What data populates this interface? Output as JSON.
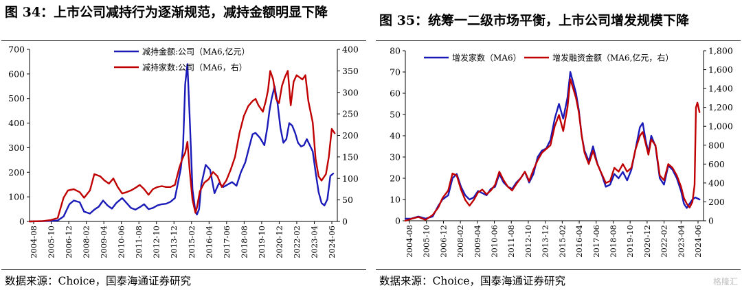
{
  "chart_data": [
    {
      "id": "fig34",
      "type": "line",
      "title": "图 34：上市公司减持行为逐渐规范，减持金额明显下降",
      "source": "数据来源：Choice，国泰海通证券研究",
      "x_ticks": [
        "2004-08",
        "2005-10",
        "2006-12",
        "2008-02",
        "2009-04",
        "2010-06",
        "2011-08",
        "2012-10",
        "2013-12",
        "2015-02",
        "2016-04",
        "2017-06",
        "2018-08",
        "2019-10",
        "2020-12",
        "2022-02",
        "2023-04",
        "2024-06"
      ],
      "y_left": {
        "min": 0,
        "max": 700,
        "ticks": [
          0,
          100,
          200,
          300,
          400,
          500,
          600,
          700
        ]
      },
      "y_right": {
        "min": 0,
        "max": 400,
        "ticks": [
          0,
          50,
          100,
          150,
          200,
          250,
          300,
          350,
          400
        ]
      },
      "legend_position": "top",
      "series": [
        {
          "name": "减持金额:公司（MA6,亿元）",
          "axis": "left",
          "color": "#1a1ab8",
          "x": [
            2004.58,
            2005.5,
            2006.0,
            2006.5,
            2006.9,
            2007.3,
            2007.6,
            2008.0,
            2008.3,
            2008.7,
            2009.0,
            2009.3,
            2009.6,
            2009.9,
            2010.2,
            2010.5,
            2010.9,
            2011.2,
            2011.5,
            2011.8,
            2012.1,
            2012.4,
            2012.7,
            2013.0,
            2013.3,
            2013.6,
            2013.9,
            2014.2,
            2014.5,
            2014.9,
            2015.05,
            2015.2,
            2015.35,
            2015.5,
            2015.7,
            2015.9,
            2016.0,
            2016.15,
            2016.3,
            2016.6,
            2016.9,
            2017.2,
            2017.5,
            2017.8,
            2018.1,
            2018.4,
            2018.7,
            2019.0,
            2019.3,
            2019.6,
            2019.8,
            2020.0,
            2020.3,
            2020.6,
            2020.8,
            2020.95,
            2021.1,
            2021.3,
            2021.5,
            2021.7,
            2021.9,
            2022.1,
            2022.3,
            2022.5,
            2022.7,
            2022.9,
            2023.1,
            2023.3,
            2023.5,
            2023.7,
            2023.9,
            2024.1,
            2024.3,
            2024.5,
            2024.7,
            2024.9,
            2025.1,
            2025.3
          ],
          "y": [
            0,
            1,
            2,
            4,
            20,
            70,
            85,
            78,
            40,
            32,
            48,
            60,
            85,
            65,
            52,
            75,
            95,
            75,
            55,
            48,
            58,
            70,
            50,
            55,
            65,
            70,
            72,
            80,
            95,
            215,
            300,
            560,
            640,
            430,
            130,
            40,
            28,
            50,
            150,
            230,
            210,
            115,
            155,
            140,
            150,
            160,
            145,
            200,
            240,
            310,
            355,
            360,
            340,
            310,
            380,
            450,
            500,
            550,
            480,
            380,
            320,
            335,
            400,
            390,
            360,
            320,
            305,
            310,
            335,
            310,
            285,
            200,
            120,
            75,
            65,
            90,
            185,
            195
          ]
        },
        {
          "name": "减持家数:公司（MA6，右）",
          "axis": "right",
          "color": "#c00000",
          "x": [
            2004.58,
            2005.5,
            2006.0,
            2006.5,
            2006.9,
            2007.2,
            2007.6,
            2008.0,
            2008.3,
            2008.7,
            2009.0,
            2009.4,
            2009.7,
            2010.0,
            2010.3,
            2010.6,
            2010.9,
            2011.2,
            2011.5,
            2011.8,
            2012.1,
            2012.4,
            2012.7,
            2013.0,
            2013.3,
            2013.6,
            2013.9,
            2014.2,
            2014.5,
            2014.8,
            2015.0,
            2015.2,
            2015.35,
            2015.5,
            2015.7,
            2015.9,
            2016.0,
            2016.2,
            2016.5,
            2016.8,
            2017.1,
            2017.4,
            2017.7,
            2018.0,
            2018.3,
            2018.6,
            2018.9,
            2019.2,
            2019.5,
            2019.8,
            2020.0,
            2020.2,
            2020.5,
            2020.7,
            2020.85,
            2021.0,
            2021.2,
            2021.4,
            2021.6,
            2021.8,
            2022.0,
            2022.2,
            2022.4,
            2022.6,
            2022.8,
            2023.0,
            2023.2,
            2023.4,
            2023.6,
            2023.9,
            2024.1,
            2024.3,
            2024.5,
            2024.8,
            2025.0,
            2025.2,
            2025.4
          ],
          "y": [
            0,
            1,
            3,
            8,
            55,
            72,
            75,
            68,
            55,
            72,
            110,
            105,
            95,
            88,
            100,
            80,
            65,
            68,
            72,
            78,
            85,
            75,
            62,
            75,
            80,
            82,
            80,
            80,
            85,
            125,
            145,
            160,
            185,
            120,
            50,
            20,
            32,
            70,
            90,
            98,
            115,
            105,
            80,
            95,
            120,
            150,
            205,
            245,
            268,
            280,
            285,
            270,
            255,
            280,
            305,
            350,
            330,
            285,
            275,
            315,
            335,
            350,
            270,
            325,
            340,
            335,
            330,
            340,
            280,
            230,
            145,
            105,
            95,
            110,
            150,
            215,
            205
          ]
        }
      ]
    },
    {
      "id": "fig35",
      "type": "line",
      "title": "图 35：统筹一二级市场平衡，上市公司增发规模下降",
      "source": "数据来源：Choice，国泰海通证券研究",
      "x_ticks": [
        "2004-08",
        "2005-10",
        "2006-12",
        "2008-02",
        "2009-04",
        "2010-06",
        "2011-08",
        "2012-10",
        "2013-12",
        "2015-02",
        "2016-04",
        "2017-06",
        "2018-08",
        "2019-10",
        "2020-12",
        "2022-02",
        "2023-04",
        "2024-06"
      ],
      "y_left": {
        "min": 0,
        "max": 80,
        "ticks": [
          0,
          10,
          20,
          30,
          40,
          50,
          60,
          70,
          80
        ]
      },
      "y_right": {
        "min": 0,
        "max": 1800,
        "ticks": [
          "0",
          "200",
          "400",
          "600",
          "800",
          "1,000",
          "1,200",
          "1,400",
          "1,600",
          "1,800"
        ]
      },
      "legend_position": "top",
      "series": [
        {
          "name": "增发家数（MA6）",
          "axis": "left",
          "color": "#1a1ab8",
          "x": [
            2004.58,
            2005.0,
            2005.5,
            2006.0,
            2006.5,
            2006.9,
            2007.2,
            2007.6,
            2007.9,
            2008.2,
            2008.5,
            2008.8,
            2009.1,
            2009.4,
            2009.7,
            2010.0,
            2010.3,
            2010.6,
            2010.9,
            2011.2,
            2011.5,
            2011.8,
            2012.1,
            2012.4,
            2012.7,
            2013.0,
            2013.3,
            2013.6,
            2013.9,
            2014.2,
            2014.5,
            2014.8,
            2015.1,
            2015.4,
            2015.7,
            2016.0,
            2016.2,
            2016.4,
            2016.6,
            2016.8,
            2017.0,
            2017.2,
            2017.5,
            2017.8,
            2018.1,
            2018.4,
            2018.7,
            2019.0,
            2019.3,
            2019.6,
            2019.9,
            2020.2,
            2020.5,
            2020.8,
            2021.1,
            2021.3,
            2021.5,
            2021.7,
            2021.9,
            2022.2,
            2022.5,
            2022.8,
            2023.1,
            2023.4,
            2023.7,
            2024.0,
            2024.2,
            2024.4,
            2024.6,
            2024.8,
            2025.0,
            2025.3
          ],
          "y": [
            1,
            1,
            2,
            1,
            2,
            7,
            10,
            12,
            20,
            22,
            16,
            12,
            10,
            11,
            14,
            13,
            12,
            15,
            16,
            22,
            18,
            16,
            15,
            18,
            20,
            23,
            18,
            22,
            30,
            33,
            34,
            38,
            48,
            55,
            48,
            58,
            70,
            65,
            60,
            52,
            40,
            33,
            28,
            35,
            27,
            22,
            16,
            17,
            22,
            20,
            23,
            19,
            24,
            34,
            44,
            46,
            38,
            32,
            40,
            35,
            20,
            17,
            26,
            24,
            20,
            14,
            8,
            6,
            8,
            10,
            11,
            10
          ]
        },
        {
          "name": "增发融资金额（MA6,亿元，右）",
          "axis": "right",
          "color": "#c00000",
          "x": [
            2004.58,
            2005.0,
            2005.5,
            2006.0,
            2006.5,
            2006.9,
            2007.2,
            2007.6,
            2007.9,
            2008.2,
            2008.5,
            2008.8,
            2009.1,
            2009.4,
            2009.7,
            2010.0,
            2010.3,
            2010.6,
            2010.9,
            2011.2,
            2011.5,
            2011.8,
            2012.1,
            2012.4,
            2012.7,
            2013.0,
            2013.3,
            2013.6,
            2013.9,
            2014.2,
            2014.5,
            2014.8,
            2015.1,
            2015.4,
            2015.7,
            2016.0,
            2016.2,
            2016.4,
            2016.6,
            2016.8,
            2017.0,
            2017.2,
            2017.5,
            2017.8,
            2018.1,
            2018.4,
            2018.7,
            2019.0,
            2019.3,
            2019.6,
            2019.9,
            2020.2,
            2020.5,
            2020.8,
            2021.1,
            2021.3,
            2021.5,
            2021.7,
            2021.9,
            2022.2,
            2022.5,
            2022.8,
            2023.1,
            2023.4,
            2023.7,
            2024.0,
            2024.2,
            2024.4,
            2024.6,
            2024.8,
            2024.95,
            2025.05,
            2025.15,
            2025.3
          ],
          "y": [
            0,
            20,
            40,
            10,
            60,
            140,
            240,
            320,
            500,
            480,
            330,
            220,
            160,
            220,
            300,
            330,
            280,
            320,
            380,
            520,
            430,
            360,
            320,
            390,
            450,
            520,
            420,
            540,
            640,
            720,
            760,
            800,
            1000,
            1120,
            950,
            1200,
            1500,
            1400,
            1300,
            1150,
            900,
            720,
            600,
            740,
            600,
            500,
            400,
            420,
            560,
            520,
            600,
            520,
            560,
            760,
            900,
            940,
            820,
            700,
            860,
            800,
            480,
            430,
            600,
            560,
            480,
            360,
            240,
            180,
            140,
            200,
            380,
            1200,
            1250,
            1150
          ]
        }
      ]
    }
  ],
  "footer": {
    "watermark": "格隆汇"
  }
}
